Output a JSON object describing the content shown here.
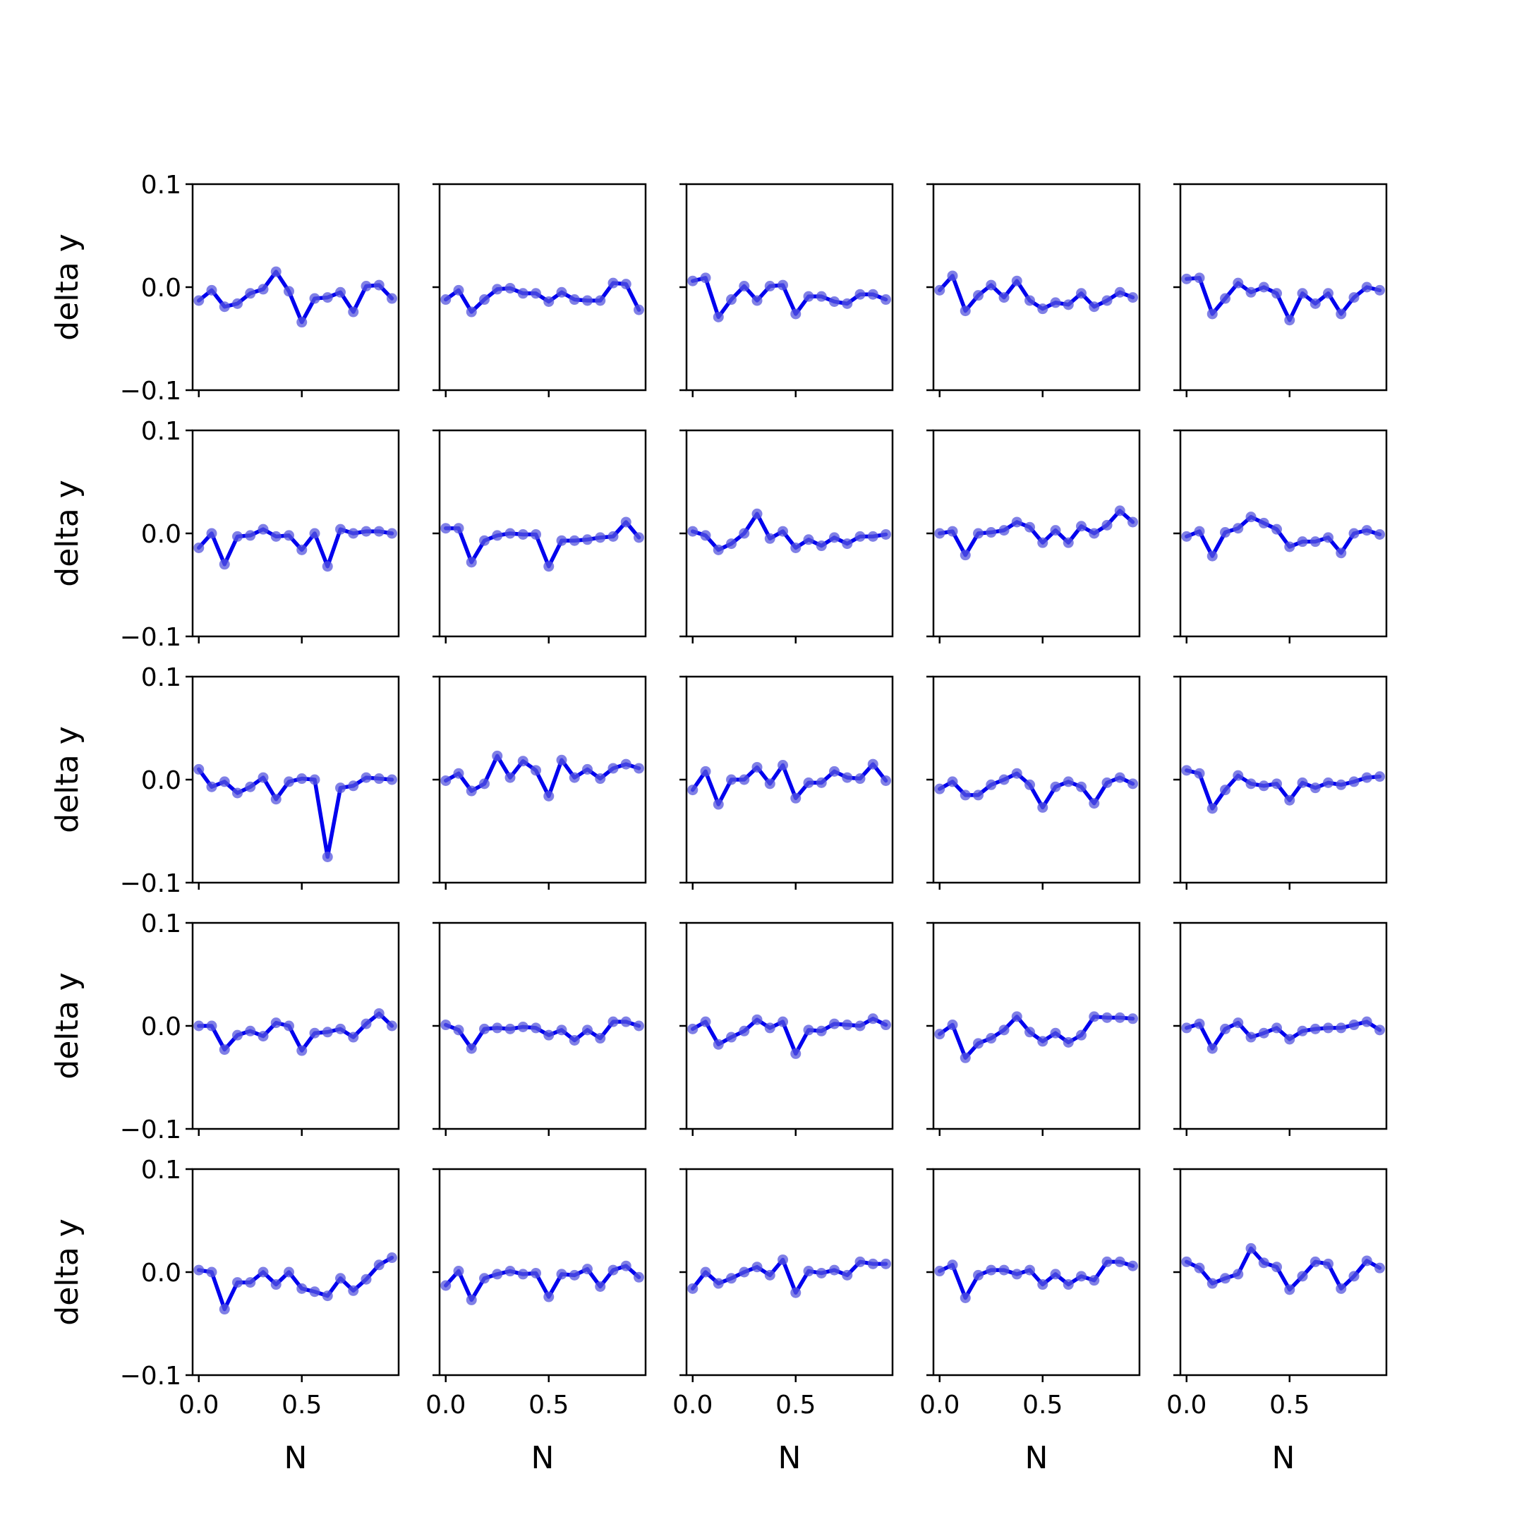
{
  "chart_data": {
    "type": "line",
    "layout": "5x5 grid of subplots",
    "xlabel": "N",
    "ylabel": "delta y",
    "xlim": [
      -0.03,
      0.97
    ],
    "ylim": [
      -0.1,
      0.1
    ],
    "x_ticks": [
      0.0,
      0.5
    ],
    "x_tick_labels": [
      "0.0",
      "0.5"
    ],
    "y_ticks": [
      0.1,
      0.0,
      -0.1
    ],
    "y_tick_labels": [
      "0.1",
      "0.0",
      "−0.1"
    ],
    "x": [
      0.0,
      0.0625,
      0.125,
      0.1875,
      0.25,
      0.3125,
      0.375,
      0.4375,
      0.5,
      0.5625,
      0.625,
      0.6875,
      0.75,
      0.8125,
      0.875,
      0.9375
    ],
    "line_color": "#0000ee",
    "marker_color": "#5555dd",
    "subplots": [
      {
        "row": 0,
        "col": 0,
        "values": [
          -0.013,
          -0.003,
          -0.019,
          -0.016,
          -0.006,
          -0.002,
          0.015,
          -0.004,
          -0.034,
          -0.011,
          -0.01,
          -0.005,
          -0.024,
          0.001,
          0.002,
          -0.011
        ]
      },
      {
        "row": 0,
        "col": 1,
        "values": [
          -0.012,
          -0.003,
          -0.024,
          -0.012,
          -0.002,
          -0.001,
          -0.006,
          -0.006,
          -0.014,
          -0.005,
          -0.012,
          -0.013,
          -0.013,
          0.004,
          0.003,
          -0.022
        ]
      },
      {
        "row": 0,
        "col": 2,
        "values": [
          0.006,
          0.009,
          -0.029,
          -0.012,
          0.001,
          -0.013,
          0.001,
          0.002,
          -0.026,
          -0.009,
          -0.009,
          -0.014,
          -0.016,
          -0.007,
          -0.007,
          -0.012
        ]
      },
      {
        "row": 0,
        "col": 3,
        "values": [
          -0.003,
          0.011,
          -0.023,
          -0.008,
          0.002,
          -0.01,
          0.006,
          -0.013,
          -0.021,
          -0.015,
          -0.017,
          -0.006,
          -0.019,
          -0.013,
          -0.005,
          -0.01
        ]
      },
      {
        "row": 0,
        "col": 4,
        "values": [
          0.008,
          0.009,
          -0.026,
          -0.011,
          0.004,
          -0.005,
          0.0,
          -0.006,
          -0.032,
          -0.006,
          -0.016,
          -0.006,
          -0.026,
          -0.01,
          0.0,
          -0.003
        ]
      },
      {
        "row": 1,
        "col": 0,
        "values": [
          -0.014,
          0.0,
          -0.03,
          -0.003,
          -0.002,
          0.004,
          -0.003,
          -0.002,
          -0.016,
          0.0,
          -0.032,
          0.004,
          0.0,
          0.002,
          0.002,
          0.0
        ]
      },
      {
        "row": 1,
        "col": 1,
        "values": [
          0.005,
          0.005,
          -0.028,
          -0.007,
          -0.002,
          0.0,
          -0.001,
          -0.001,
          -0.032,
          -0.007,
          -0.007,
          -0.006,
          -0.004,
          -0.003,
          0.011,
          -0.004
        ]
      },
      {
        "row": 1,
        "col": 2,
        "values": [
          0.002,
          -0.002,
          -0.016,
          -0.01,
          0.0,
          0.019,
          -0.005,
          0.002,
          -0.014,
          -0.006,
          -0.012,
          -0.004,
          -0.01,
          -0.003,
          -0.003,
          -0.001
        ]
      },
      {
        "row": 1,
        "col": 3,
        "values": [
          0.0,
          0.002,
          -0.021,
          0.0,
          0.001,
          0.003,
          0.011,
          0.006,
          -0.009,
          0.003,
          -0.009,
          0.007,
          0.0,
          0.008,
          0.022,
          0.011
        ]
      },
      {
        "row": 1,
        "col": 4,
        "values": [
          -0.003,
          0.002,
          -0.022,
          0.001,
          0.005,
          0.016,
          0.01,
          0.004,
          -0.013,
          -0.008,
          -0.008,
          -0.004,
          -0.019,
          0.0,
          0.003,
          -0.001
        ]
      },
      {
        "row": 2,
        "col": 0,
        "values": [
          0.01,
          -0.007,
          -0.002,
          -0.013,
          -0.007,
          0.002,
          -0.019,
          -0.002,
          0.001,
          0.0,
          -0.075,
          -0.008,
          -0.006,
          0.002,
          0.001,
          0.0
        ]
      },
      {
        "row": 2,
        "col": 1,
        "values": [
          -0.001,
          0.006,
          -0.011,
          -0.004,
          0.023,
          0.002,
          0.018,
          0.009,
          -0.016,
          0.019,
          0.002,
          0.01,
          0.001,
          0.011,
          0.015,
          0.011
        ]
      },
      {
        "row": 2,
        "col": 2,
        "values": [
          -0.01,
          0.008,
          -0.024,
          0.0,
          0.0,
          0.012,
          -0.004,
          0.014,
          -0.018,
          -0.003,
          -0.003,
          0.008,
          0.002,
          0.001,
          0.015,
          -0.001
        ]
      },
      {
        "row": 2,
        "col": 3,
        "values": [
          -0.009,
          -0.002,
          -0.015,
          -0.015,
          -0.005,
          0.0,
          0.006,
          -0.005,
          -0.027,
          -0.007,
          -0.002,
          -0.007,
          -0.023,
          -0.003,
          0.002,
          -0.004
        ]
      },
      {
        "row": 2,
        "col": 4,
        "values": [
          0.009,
          0.006,
          -0.028,
          -0.01,
          0.004,
          -0.004,
          -0.006,
          -0.004,
          -0.02,
          -0.003,
          -0.008,
          -0.003,
          -0.005,
          -0.002,
          0.002,
          0.003
        ]
      },
      {
        "row": 3,
        "col": 0,
        "values": [
          0.0,
          0.0,
          -0.023,
          -0.009,
          -0.005,
          -0.01,
          0.003,
          0.0,
          -0.024,
          -0.007,
          -0.006,
          -0.003,
          -0.011,
          0.002,
          0.012,
          0.0
        ]
      },
      {
        "row": 3,
        "col": 1,
        "values": [
          0.001,
          -0.004,
          -0.022,
          -0.003,
          -0.002,
          -0.003,
          -0.001,
          -0.002,
          -0.009,
          -0.004,
          -0.014,
          -0.004,
          -0.012,
          0.004,
          0.004,
          0.0
        ]
      },
      {
        "row": 3,
        "col": 2,
        "values": [
          -0.003,
          0.004,
          -0.018,
          -0.011,
          -0.005,
          0.006,
          -0.002,
          0.004,
          -0.027,
          -0.004,
          -0.005,
          0.002,
          0.001,
          0.0,
          0.007,
          0.001
        ]
      },
      {
        "row": 3,
        "col": 3,
        "values": [
          -0.008,
          0.001,
          -0.031,
          -0.017,
          -0.012,
          -0.004,
          0.009,
          -0.006,
          -0.015,
          -0.007,
          -0.016,
          -0.009,
          0.009,
          0.008,
          0.008,
          0.007
        ]
      },
      {
        "row": 3,
        "col": 4,
        "values": [
          -0.002,
          0.002,
          -0.022,
          -0.003,
          0.003,
          -0.011,
          -0.007,
          -0.002,
          -0.013,
          -0.005,
          -0.003,
          -0.002,
          -0.002,
          0.001,
          0.004,
          -0.004
        ]
      },
      {
        "row": 4,
        "col": 0,
        "values": [
          0.002,
          0.0,
          -0.036,
          -0.01,
          -0.01,
          0.0,
          -0.012,
          0.0,
          -0.016,
          -0.019,
          -0.023,
          -0.006,
          -0.018,
          -0.007,
          0.007,
          0.014
        ]
      },
      {
        "row": 4,
        "col": 1,
        "values": [
          -0.013,
          0.001,
          -0.027,
          -0.006,
          -0.002,
          0.001,
          -0.002,
          -0.001,
          -0.024,
          -0.002,
          -0.003,
          0.003,
          -0.014,
          0.002,
          0.006,
          -0.005
        ]
      },
      {
        "row": 4,
        "col": 2,
        "values": [
          -0.016,
          0.0,
          -0.011,
          -0.006,
          0.0,
          0.005,
          -0.003,
          0.012,
          -0.02,
          0.001,
          -0.001,
          0.002,
          -0.003,
          0.01,
          0.008,
          0.008
        ]
      },
      {
        "row": 4,
        "col": 3,
        "values": [
          0.001,
          0.007,
          -0.025,
          -0.003,
          0.002,
          0.002,
          -0.002,
          0.002,
          -0.012,
          -0.002,
          -0.012,
          -0.004,
          -0.008,
          0.01,
          0.01,
          0.006
        ]
      },
      {
        "row": 4,
        "col": 4,
        "values": [
          0.01,
          0.004,
          -0.011,
          -0.006,
          -0.002,
          0.023,
          0.009,
          0.005,
          -0.017,
          -0.004,
          0.01,
          0.008,
          -0.016,
          -0.004,
          0.011,
          0.004
        ]
      }
    ]
  }
}
